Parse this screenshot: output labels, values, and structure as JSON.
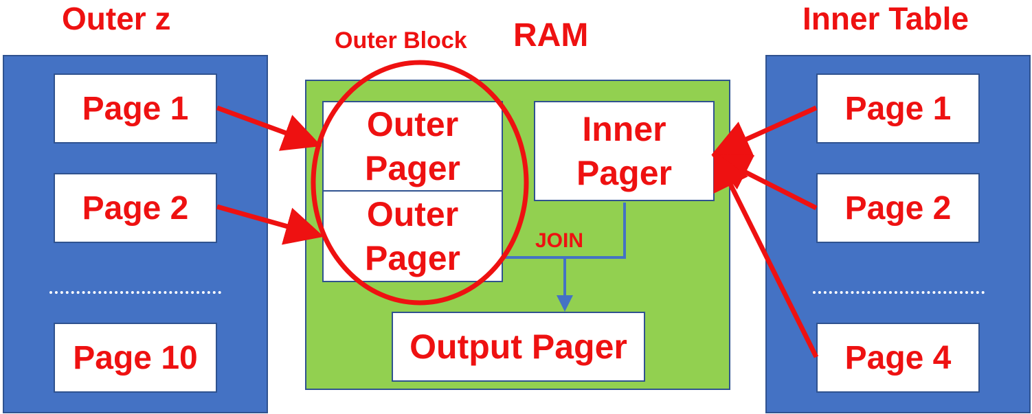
{
  "titles": {
    "outer": "Outer z",
    "ram": "RAM",
    "inner": "Inner Table",
    "outer_block": "Outer Block",
    "join": "JOIN"
  },
  "outer_table": {
    "pages": [
      "Page 1",
      "Page 2",
      "Page 10"
    ]
  },
  "inner_table": {
    "pages": [
      "Page 1",
      "Page 2",
      "Page 4"
    ]
  },
  "ram": {
    "outer_pager_1": {
      "line1": "Outer",
      "line2": "Pager"
    },
    "outer_pager_2": {
      "line1": "Outer",
      "line2": "Pager"
    },
    "inner_pager": {
      "line1": "Inner",
      "line2": "Pager"
    },
    "output_pager": "Output Pager"
  },
  "colors": {
    "panel_blue": "#4472c4",
    "ram_green": "#92d050",
    "accent_red": "#ee1111",
    "border_blue": "#2f528f"
  }
}
